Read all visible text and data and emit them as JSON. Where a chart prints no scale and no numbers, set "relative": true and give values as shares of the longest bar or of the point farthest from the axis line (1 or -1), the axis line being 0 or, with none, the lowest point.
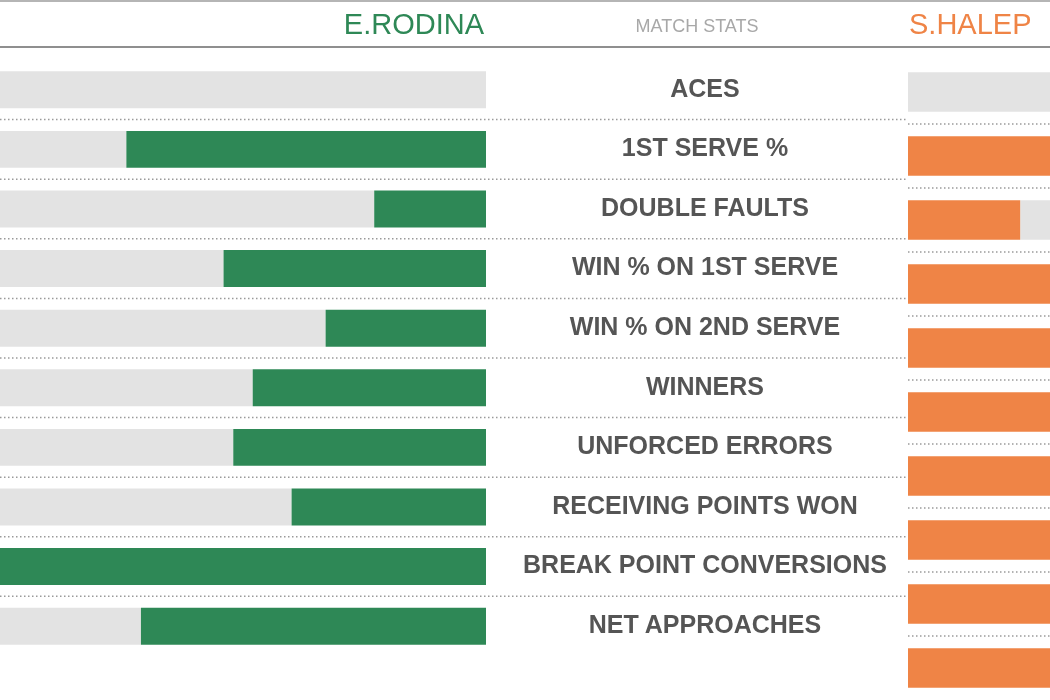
{
  "chart_data": [
    {
      "type": "bar",
      "title": "MATCH STATS",
      "orientation": "horizontal",
      "stacked": true,
      "relative": true,
      "grid": "y",
      "categories": [
        "ACES",
        "1ST SERVE %",
        "DOUBLE FAULTS",
        "WIN % ON 1ST SERVE",
        "WIN % ON 2ND SERVE",
        "WINNERS",
        "UNFORCED ERRORS",
        "RECEIVING POINTS WON",
        "BREAK POINT CONVERSIONS",
        "NET APPROACHES"
      ],
      "series": [
        {
          "name": "E.RODINA",
          "color": "#2e8856",
          "values": [
            null,
            -0.74,
            -0.23,
            -0.54,
            -0.33,
            -0.48,
            -0.52,
            -0.4,
            -1,
            -0.71
          ]
        },
        {
          "color": "#e3e3e3",
          "values": [
            -1,
            -0.26,
            -0.77,
            -0.46,
            -0.67,
            -0.52,
            -0.48,
            -0.6,
            null,
            -0.29
          ]
        }
      ]
    },
    {
      "type": "bar",
      "orientation": "horizontal",
      "stacked": true,
      "relative": true,
      "grid": "y",
      "categories": [
        null,
        null,
        null,
        null,
        null,
        null,
        null,
        null,
        null,
        null
      ],
      "series": [
        {
          "name": "S.HALEP",
          "color": "#ef8446",
          "values": [
            null,
            1,
            0.79,
            1,
            1,
            1,
            1,
            1,
            1,
            1
          ]
        },
        {
          "color": "#e3e3e3",
          "values": [
            1,
            null,
            0.21,
            null,
            null,
            null,
            null,
            null,
            null,
            null
          ]
        }
      ]
    }
  ]
}
